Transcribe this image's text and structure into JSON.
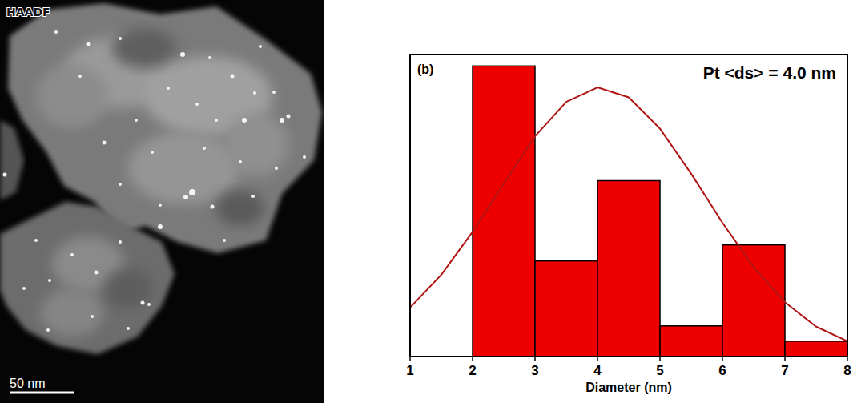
{
  "image": {
    "label": "HAADF",
    "scale_bar": "50 nm"
  },
  "chart_data": {
    "type": "histogram",
    "panel": "(b)",
    "title": "Pt <ds> = 4.0 nm",
    "x_label": "Diameter (nm)",
    "bins": [
      2,
      3,
      4,
      5,
      6,
      7,
      8
    ],
    "series": [
      {
        "type": "bar",
        "color": "#ee0000",
        "values": [
          38,
          12.5,
          23,
          4,
          14.6,
          2
        ]
      },
      {
        "type": "line",
        "color": "#b01515",
        "x": [
          1,
          1.5,
          2,
          2.5,
          3,
          3.5,
          4,
          4.5,
          5,
          5.5,
          6,
          6.5,
          7,
          7.5,
          8
        ],
        "values": [
          6.4,
          10.7,
          16.3,
          22.6,
          28.8,
          33.3,
          35.2,
          33.9,
          29.8,
          23.9,
          17.5,
          11.7,
          7.1,
          3.9,
          2.0
        ]
      }
    ],
    "xlim": [
      1,
      8
    ],
    "xticks": [
      1,
      2,
      3,
      4,
      5,
      6,
      7,
      8
    ],
    "ylim": [
      0,
      39.5
    ],
    "grid": false,
    "tick_labels": "x"
  }
}
